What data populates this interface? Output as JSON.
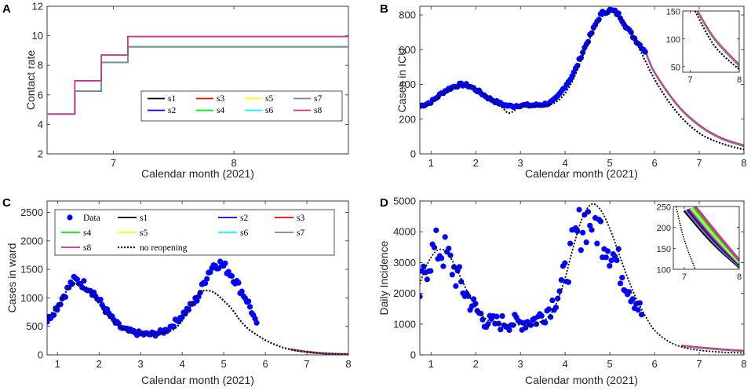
{
  "colors": {
    "s1": "#000000",
    "s2": "#0000ff",
    "s3": "#ff0000",
    "s4": "#00ee00",
    "s5": "#ffff00",
    "s6": "#00ffff",
    "s7": "#778899",
    "s8": "#cc3399",
    "data": "#0000ff",
    "no_reopening": "#000000"
  },
  "chart_data": [
    {
      "panel": "A",
      "type": "line",
      "xlabel": "Calendar month (2021)",
      "ylabel": "Contact rate",
      "xlim": [
        6.45,
        8.95
      ],
      "ylim": [
        2,
        12
      ],
      "xticks": [
        7,
        8
      ],
      "yticks": [
        2,
        4,
        6,
        8,
        10,
        12
      ],
      "legend": [
        "s1",
        "s3",
        "s5",
        "s7",
        "s2",
        "s4",
        "s6",
        "s8"
      ],
      "series": [
        {
          "name": "s4",
          "x": [
            6.45,
            6.68,
            6.68,
            6.9,
            6.9,
            7.12,
            7.12,
            8.95
          ],
          "y": [
            4.7,
            4.7,
            6.25,
            6.25,
            8.2,
            8.2,
            9.25,
            9.25
          ]
        },
        {
          "name": "s6",
          "x": [
            6.45,
            6.68,
            6.68,
            6.9,
            6.9,
            7.12,
            7.12,
            8.95
          ],
          "y": [
            4.7,
            4.7,
            6.25,
            6.25,
            8.2,
            8.2,
            9.25,
            9.25
          ]
        },
        {
          "name": "s7",
          "x": [
            6.45,
            6.68,
            6.68,
            6.9,
            6.9,
            7.12,
            7.12,
            8.95
          ],
          "y": [
            4.7,
            4.7,
            6.25,
            6.25,
            8.2,
            8.2,
            9.25,
            9.25
          ]
        },
        {
          "name": "s8",
          "x": [
            6.45,
            6.68,
            6.68,
            6.9,
            6.9,
            7.12,
            7.12,
            8.95
          ],
          "y": [
            4.7,
            4.7,
            6.95,
            6.95,
            8.7,
            8.7,
            9.95,
            9.95
          ]
        }
      ]
    },
    {
      "panel": "B",
      "type": "scatter",
      "xlabel": "Calendar month (2021)",
      "ylabel": "Cases in ICU",
      "xlim": [
        0.75,
        8
      ],
      "ylim": [
        0,
        850
      ],
      "xticks": [
        1,
        2,
        3,
        4,
        5,
        6,
        7,
        8
      ],
      "yticks": [
        0,
        200,
        400,
        600,
        800
      ],
      "data_knots": {
        "x": [
          0.75,
          1.0,
          1.3,
          1.6,
          1.8,
          2.0,
          2.3,
          2.6,
          2.8,
          3.0,
          3.3,
          3.6,
          3.8,
          4.0,
          4.2,
          4.4,
          4.6,
          4.8,
          5.0,
          5.2,
          5.4,
          5.6,
          5.8
        ],
        "y": [
          275,
          300,
          360,
          395,
          395,
          370,
          320,
          285,
          275,
          280,
          280,
          290,
          320,
          390,
          470,
          590,
          700,
          800,
          825,
          800,
          720,
          650,
          590
        ]
      },
      "no_reopening": {
        "x": [
          0.75,
          1.0,
          1.3,
          1.6,
          1.8,
          2.0,
          2.3,
          2.6,
          2.75,
          3.0,
          3.3,
          3.6,
          3.8,
          4.0,
          4.2,
          4.4,
          4.6,
          4.8,
          5.0,
          5.2,
          5.5,
          6.0,
          6.5,
          7.0,
          7.5,
          8.0
        ],
        "y": [
          270,
          290,
          350,
          390,
          395,
          375,
          320,
          265,
          235,
          270,
          275,
          280,
          300,
          350,
          440,
          570,
          690,
          780,
          820,
          790,
          690,
          430,
          240,
          120,
          60,
          25
        ]
      },
      "s_curves": {
        "x": [
          5.8,
          6.0,
          6.5,
          7.0,
          7.5,
          8.0
        ],
        "y": [
          590,
          470,
          285,
          165,
          90,
          48
        ]
      },
      "inset": {
        "xlim": [
          6.85,
          8
        ],
        "ylim": [
          40,
          150
        ],
        "xticks": [
          7,
          8
        ],
        "yticks": [
          50,
          100,
          150
        ],
        "s_curves": {
          "x": [
            7.15,
            7.5,
            8.0
          ],
          "y": [
            150,
            100,
            53
          ]
        },
        "no_reopening": {
          "x": [
            7.1,
            7.5,
            8.0
          ],
          "y": [
            150,
            87,
            45
          ]
        }
      }
    },
    {
      "panel": "C",
      "type": "scatter",
      "xlabel": "Calendar month (2021)",
      "ylabel": "Cases in ward",
      "xlim": [
        0.75,
        8
      ],
      "ylim": [
        0,
        2700
      ],
      "xticks": [
        1,
        2,
        3,
        4,
        5,
        6,
        7,
        8
      ],
      "yticks": [
        0,
        500,
        1000,
        1500,
        2000,
        2500
      ],
      "legend": [
        "Data",
        "s1",
        "s2",
        "s3",
        "s4",
        "s5",
        "s6",
        "s7",
        "s8",
        "no reopening"
      ],
      "data_knots": {
        "x": [
          0.75,
          1.0,
          1.2,
          1.4,
          1.6,
          1.8,
          2.0,
          2.2,
          2.4,
          2.6,
          2.8,
          3.0,
          3.2,
          3.4,
          3.6,
          3.8,
          4.0,
          4.2,
          4.4,
          4.6,
          4.8,
          5.0,
          5.2,
          5.4,
          5.6,
          5.8
        ],
        "y": [
          600,
          850,
          1100,
          1300,
          1250,
          1150,
          950,
          750,
          560,
          450,
          400,
          370,
          360,
          380,
          430,
          550,
          700,
          850,
          1050,
          1400,
          1600,
          1550,
          1400,
          1150,
          900,
          500
        ]
      },
      "no_reopening": {
        "x": [
          0.75,
          1.0,
          1.2,
          1.4,
          1.6,
          1.8,
          2.0,
          2.2,
          2.4,
          2.6,
          2.8,
          3.0,
          3.2,
          3.4,
          3.6,
          3.8,
          4.0,
          4.2,
          4.4,
          4.6,
          4.8,
          5.0,
          5.2,
          5.4,
          5.6,
          5.8,
          6.0,
          6.3,
          6.6,
          7.0,
          7.5,
          8.0
        ],
        "y": [
          650,
          850,
          1100,
          1250,
          1200,
          1100,
          900,
          700,
          550,
          450,
          400,
          370,
          360,
          380,
          400,
          450,
          600,
          850,
          1080,
          1130,
          1080,
          950,
          800,
          600,
          450,
          350,
          260,
          160,
          95,
          50,
          20,
          10
        ]
      },
      "s_curves": {
        "x": [
          6.6,
          7.0,
          7.5,
          8.0
        ],
        "y": [
          100,
          55,
          25,
          12
        ]
      }
    },
    {
      "panel": "D",
      "type": "scatter",
      "xlabel": "Calendar month (2021)",
      "ylabel": "Daily Incidence",
      "xlim": [
        0.75,
        8
      ],
      "ylim": [
        0,
        5000
      ],
      "xticks": [
        1,
        2,
        3,
        4,
        5,
        6,
        7,
        8
      ],
      "yticks": [
        0,
        1000,
        2000,
        3000,
        4000,
        5000
      ],
      "data_knots": {
        "x": [
          0.75,
          0.9,
          1.1,
          1.3,
          1.5,
          1.7,
          1.9,
          2.1,
          2.3,
          2.5,
          2.8,
          3.0,
          3.2,
          3.4,
          3.6,
          3.8,
          4.0,
          4.2,
          4.4,
          4.6,
          4.8,
          5.0,
          5.2,
          5.4,
          5.6,
          5.75
        ],
        "y": [
          2000,
          2900,
          3400,
          3300,
          2800,
          2200,
          1700,
          1300,
          1050,
          1050,
          1050,
          1050,
          1100,
          1200,
          1450,
          1900,
          2600,
          3600,
          4300,
          4400,
          4000,
          3500,
          2900,
          2300,
          1700,
          1200
        ]
      },
      "no_reopening": {
        "x": [
          0.75,
          0.9,
          1.1,
          1.3,
          1.5,
          1.7,
          1.9,
          2.1,
          2.3,
          2.5,
          2.8,
          3.0,
          3.2,
          3.4,
          3.6,
          3.8,
          4.0,
          4.2,
          4.4,
          4.6,
          4.8,
          5.0,
          5.2,
          5.4,
          5.6,
          5.8,
          6.0,
          6.3,
          6.6,
          7.0,
          7.5,
          8.0
        ],
        "y": [
          2300,
          2900,
          3350,
          3400,
          3000,
          2400,
          1800,
          1350,
          1100,
          1000,
          980,
          980,
          990,
          1050,
          1200,
          1650,
          2500,
          3600,
          4500,
          4900,
          4700,
          4100,
          3300,
          2500,
          1800,
          1250,
          800,
          450,
          260,
          150,
          90,
          60
        ]
      },
      "s_curves": {
        "x": [
          6.6,
          7.0,
          7.5,
          8.0
        ],
        "y": [
          300,
          240,
          180,
          130
        ]
      },
      "inset": {
        "xlim": [
          6.8,
          8
        ],
        "ylim": [
          100,
          250
        ],
        "xticks": [
          7,
          8
        ],
        "yticks": [
          100,
          150,
          200,
          250
        ],
        "s_curves_low": {
          "x": [
            7.0,
            7.5,
            8.0
          ],
          "y": [
            240,
            165,
            105
          ]
        },
        "s_curves_high": {
          "x": [
            7.2,
            7.6,
            8.0
          ],
          "y": [
            250,
            185,
            122
          ]
        },
        "no_reopening": {
          "x": [
            6.85,
            7.0,
            7.2
          ],
          "y": [
            250,
            170,
            100
          ]
        }
      }
    }
  ]
}
